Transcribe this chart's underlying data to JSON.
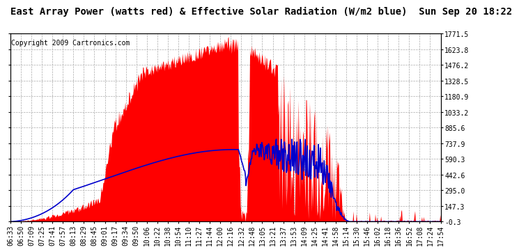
{
  "title": "East Array Power (watts red) & Effective Solar Radiation (W/m2 blue)  Sun Sep 20 18:22",
  "copyright": "Copyright 2009 Cartronics.com",
  "yticks": [
    1771.5,
    1623.8,
    1476.2,
    1328.5,
    1180.9,
    1033.2,
    885.6,
    737.9,
    590.3,
    442.6,
    295.0,
    147.3,
    -0.3
  ],
  "ymin": -0.3,
  "ymax": 1771.5,
  "background_color": "#ffffff",
  "fill_color": "#ff0000",
  "line_color": "#0000cc",
  "grid_color": "#aaaaaa",
  "title_fontsize": 10,
  "copyright_fontsize": 7,
  "tick_fontsize": 7,
  "x_tick_labels": [
    "06:33",
    "06:50",
    "07:09",
    "07:25",
    "07:41",
    "07:57",
    "08:13",
    "08:29",
    "08:45",
    "09:01",
    "09:17",
    "09:34",
    "09:50",
    "10:06",
    "10:22",
    "10:38",
    "10:54",
    "11:10",
    "11:27",
    "11:44",
    "12:00",
    "12:16",
    "12:32",
    "12:48",
    "13:05",
    "13:21",
    "13:37",
    "13:53",
    "14:09",
    "14:25",
    "14:41",
    "14:58",
    "15:14",
    "15:30",
    "15:46",
    "16:02",
    "16:18",
    "16:36",
    "16:52",
    "17:08",
    "17:24",
    "17:54"
  ],
  "n_labels": 42
}
